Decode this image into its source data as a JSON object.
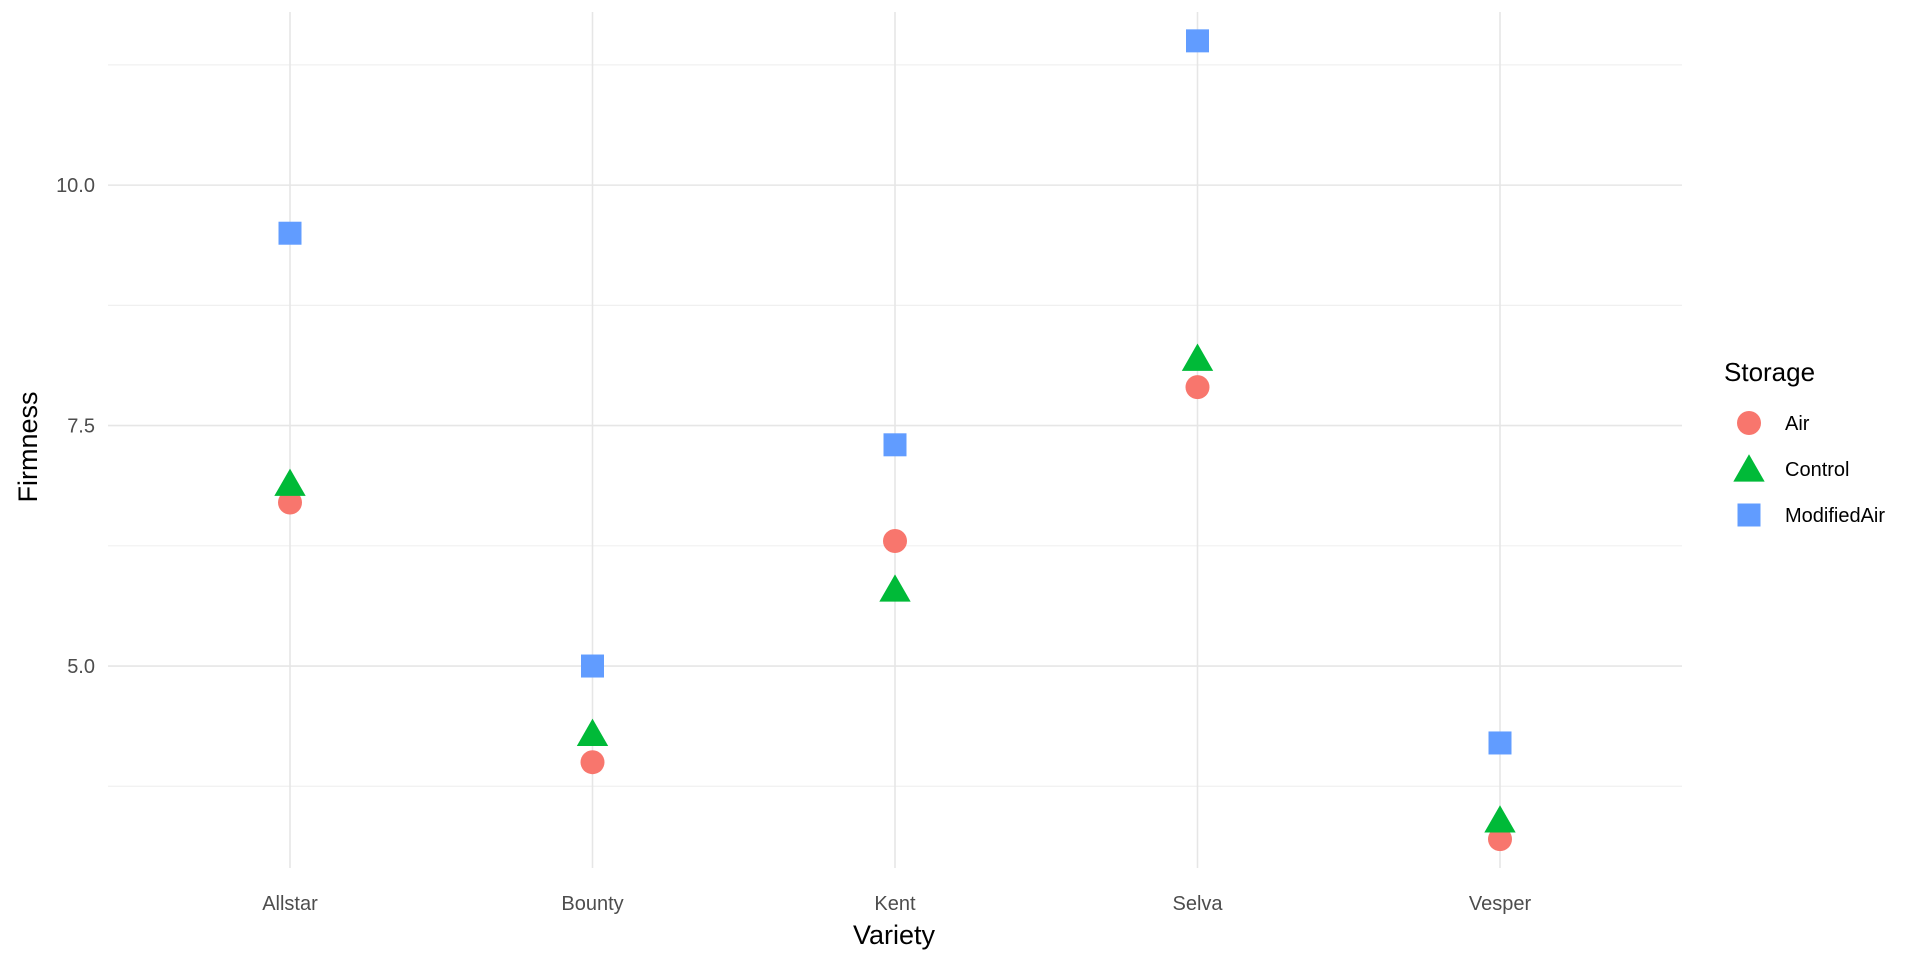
{
  "chart_data": {
    "type": "scatter",
    "xlabel": "Variety",
    "ylabel": "Firmness",
    "categories": [
      "Allstar",
      "Bounty",
      "Kent",
      "Selva",
      "Vesper"
    ],
    "y_ticks": [
      5.0,
      7.5,
      10.0
    ],
    "y_tick_labels": [
      "5.0",
      "7.5",
      "10.0"
    ],
    "ylim": [
      2.9,
      11.8
    ],
    "grid": true,
    "legend": {
      "title": "Storage",
      "position": "right"
    },
    "series": [
      {
        "name": "Air",
        "shape": "circle",
        "color": "#F8766D",
        "values": [
          6.7,
          4.0,
          6.3,
          7.9,
          3.2
        ]
      },
      {
        "name": "Control",
        "shape": "triangle",
        "color": "#00BA38",
        "values": [
          6.9,
          4.3,
          5.8,
          8.2,
          3.4
        ]
      },
      {
        "name": "ModifiedAir",
        "shape": "square",
        "color": "#619CFF",
        "values": [
          9.5,
          5.0,
          7.3,
          11.5,
          4.2
        ]
      }
    ]
  }
}
